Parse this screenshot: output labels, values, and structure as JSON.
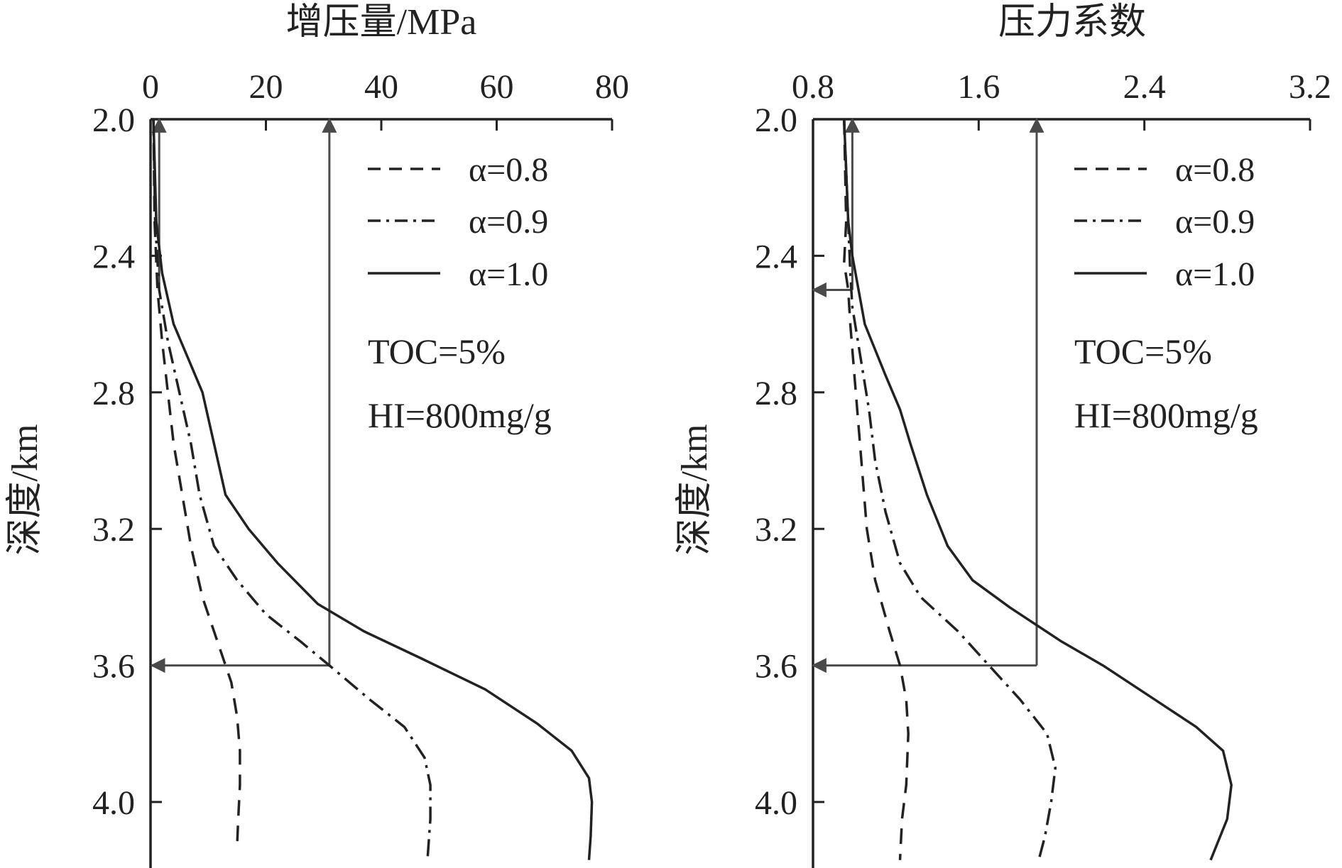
{
  "chart_data": [
    {
      "type": "line",
      "title": "增压量/MPa",
      "xlabel": "增压量/MPa",
      "ylabel": "深度/km",
      "xlim": [
        0,
        80
      ],
      "ylim": [
        2.0,
        4.2
      ],
      "y_inverted": true,
      "x_axis_position": "top",
      "xticks": [
        "0",
        "20",
        "40",
        "60",
        "80"
      ],
      "yticks": [
        "2.0",
        "2.4",
        "2.8",
        "3.2",
        "3.6",
        "4.0"
      ],
      "legend_position": "top-right",
      "annotations": [
        "TOC=5%",
        "HI=800mg/g"
      ],
      "series": [
        {
          "name": "α=0.8",
          "style": "dashed",
          "points": [
            [
              0.5,
              2.0
            ],
            [
              0.7,
              2.3
            ],
            [
              1.2,
              2.5
            ],
            [
              2,
              2.65
            ],
            [
              3,
              2.8
            ],
            [
              4,
              2.95
            ],
            [
              5.5,
              3.1
            ],
            [
              7,
              3.25
            ],
            [
              9,
              3.4
            ],
            [
              12,
              3.55
            ],
            [
              14,
              3.65
            ],
            [
              15,
              3.75
            ],
            [
              15.5,
              3.85
            ],
            [
              15.5,
              3.95
            ],
            [
              15.2,
              4.05
            ],
            [
              15,
              4.13
            ]
          ]
        },
        {
          "name": "α=0.9",
          "style": "dashdot",
          "points": [
            [
              0.5,
              2.0
            ],
            [
              0.8,
              2.3
            ],
            [
              1.5,
              2.5
            ],
            [
              3,
              2.65
            ],
            [
              5,
              2.8
            ],
            [
              7,
              2.95
            ],
            [
              8.5,
              3.1
            ],
            [
              11,
              3.25
            ],
            [
              15,
              3.35
            ],
            [
              20,
              3.45
            ],
            [
              26,
              3.53
            ],
            [
              31,
              3.6
            ],
            [
              38,
              3.7
            ],
            [
              44,
              3.78
            ],
            [
              47.5,
              3.87
            ],
            [
              48.5,
              3.95
            ],
            [
              48.5,
              4.05
            ],
            [
              48,
              4.17
            ]
          ]
        },
        {
          "name": "α=1.0",
          "style": "solid",
          "points": [
            [
              0.5,
              2.0
            ],
            [
              1,
              2.3
            ],
            [
              2,
              2.45
            ],
            [
              4,
              2.6
            ],
            [
              7,
              2.72
            ],
            [
              9,
              2.8
            ],
            [
              11,
              2.95
            ],
            [
              13,
              3.1
            ],
            [
              17,
              3.2
            ],
            [
              22,
              3.3
            ],
            [
              29,
              3.42
            ],
            [
              37,
              3.5
            ],
            [
              47,
              3.58
            ],
            [
              58,
              3.67
            ],
            [
              67,
              3.77
            ],
            [
              73,
              3.85
            ],
            [
              76,
              3.93
            ],
            [
              76.5,
              4.0
            ],
            [
              76.3,
              4.1
            ],
            [
              76,
              4.17
            ]
          ]
        }
      ],
      "guide_arrows": [
        {
          "x": [
            31,
            31
          ],
          "y": [
            3.6,
            2.0
          ]
        },
        {
          "x": [
            31,
            0.2
          ],
          "y": [
            3.6,
            3.6
          ]
        },
        {
          "x": [
            1.5,
            1.5
          ],
          "y": [
            2.5,
            2.0
          ]
        }
      ]
    },
    {
      "type": "line",
      "title": "压力系数",
      "xlabel": "压力系数",
      "ylabel": "深度/km",
      "xlim": [
        0.8,
        3.2
      ],
      "ylim": [
        2.0,
        4.2
      ],
      "y_inverted": true,
      "x_axis_position": "top",
      "xticks": [
        "0.8",
        "1.6",
        "2.4",
        "3.2"
      ],
      "yticks": [
        "2.0",
        "2.4",
        "2.8",
        "3.2",
        "3.6",
        "4.0"
      ],
      "legend_position": "top-right",
      "annotations": [
        "TOC=5%",
        "HI=800mg/g"
      ],
      "series": [
        {
          "name": "α=0.8",
          "style": "dashed",
          "points": [
            [
              0.95,
              2.0
            ],
            [
              0.96,
              2.3
            ],
            [
              0.95,
              2.42
            ],
            [
              0.97,
              2.5
            ],
            [
              0.98,
              2.6
            ],
            [
              1.0,
              2.75
            ],
            [
              1.02,
              2.9
            ],
            [
              1.04,
              3.05
            ],
            [
              1.06,
              3.2
            ],
            [
              1.1,
              3.35
            ],
            [
              1.17,
              3.5
            ],
            [
              1.22,
              3.6
            ],
            [
              1.25,
              3.7
            ],
            [
              1.26,
              3.8
            ],
            [
              1.25,
              3.95
            ],
            [
              1.23,
              4.05
            ],
            [
              1.22,
              4.17
            ]
          ]
        },
        {
          "name": "α=0.9",
          "style": "dashdot",
          "points": [
            [
              0.95,
              2.0
            ],
            [
              0.97,
              2.3
            ],
            [
              0.98,
              2.45
            ],
            [
              0.99,
              2.55
            ],
            [
              1.03,
              2.7
            ],
            [
              1.07,
              2.85
            ],
            [
              1.1,
              3.0
            ],
            [
              1.15,
              3.15
            ],
            [
              1.22,
              3.3
            ],
            [
              1.32,
              3.4
            ],
            [
              1.5,
              3.5
            ],
            [
              1.65,
              3.6
            ],
            [
              1.8,
              3.7
            ],
            [
              1.93,
              3.8
            ],
            [
              1.97,
              3.9
            ],
            [
              1.95,
              4.0
            ],
            [
              1.92,
              4.1
            ],
            [
              1.89,
              4.17
            ]
          ]
        },
        {
          "name": "α=1.0",
          "style": "solid",
          "points": [
            [
              0.95,
              2.0
            ],
            [
              0.97,
              2.3
            ],
            [
              0.99,
              2.4
            ],
            [
              1.05,
              2.6
            ],
            [
              1.15,
              2.75
            ],
            [
              1.22,
              2.85
            ],
            [
              1.27,
              2.95
            ],
            [
              1.35,
              3.1
            ],
            [
              1.45,
              3.25
            ],
            [
              1.57,
              3.35
            ],
            [
              1.75,
              3.43
            ],
            [
              2.0,
              3.53
            ],
            [
              2.2,
              3.6
            ],
            [
              2.45,
              3.7
            ],
            [
              2.65,
              3.78
            ],
            [
              2.78,
              3.85
            ],
            [
              2.82,
              3.95
            ],
            [
              2.8,
              4.05
            ],
            [
              2.72,
              4.17
            ]
          ]
        }
      ],
      "guide_arrows": [
        {
          "x": [
            1.88,
            1.88
          ],
          "y": [
            3.6,
            2.0
          ]
        },
        {
          "x": [
            1.88,
            0.8
          ],
          "y": [
            3.6,
            3.6
          ]
        },
        {
          "x": [
            0.99,
            0.99
          ],
          "y": [
            2.5,
            2.0
          ]
        },
        {
          "x": [
            0.99,
            0.8
          ],
          "y": [
            2.5,
            2.5
          ]
        }
      ]
    }
  ]
}
